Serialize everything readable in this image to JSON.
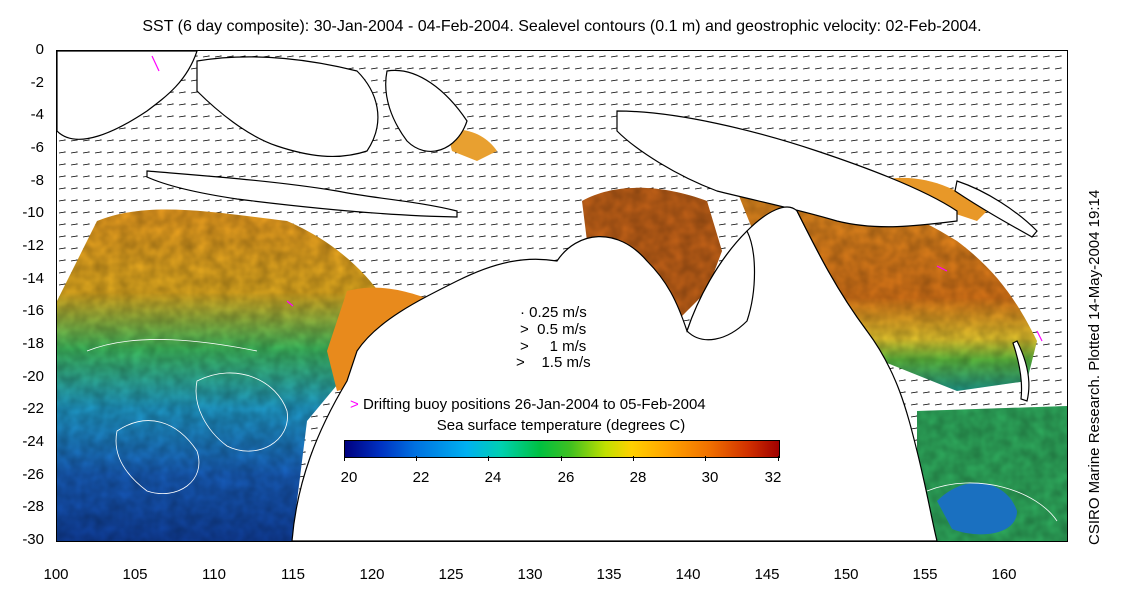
{
  "title": "SST (6 day composite): 30-Jan-2004 - 04-Feb-2004. Sealevel contours (0.1 m) and geostrophic velocity: 02-Feb-2004.",
  "credit": "CSIRO Marine Research. Plotted 14-May-2004 19:14",
  "map": {
    "lon_range": [
      100,
      164
    ],
    "lat_range": [
      -30,
      0
    ],
    "lon_ticks": [
      "100",
      "105",
      "110",
      "115",
      "120",
      "125",
      "130",
      "135",
      "140",
      "145",
      "150",
      "155",
      "160"
    ],
    "lat_ticks": [
      "0",
      "-2",
      "-4",
      "-6",
      "-8",
      "-10",
      "-12",
      "-14",
      "-16",
      "-18",
      "-20",
      "-22",
      "-24",
      "-26",
      "-28",
      "-30"
    ]
  },
  "velocity_legend": [
    {
      "label": "0.25 m/s"
    },
    {
      "label": "0.5 m/s"
    },
    {
      "label": "1 m/s"
    },
    {
      "label": "1.5 m/s"
    }
  ],
  "buoy_legend": "Drifting buoy positions 26-Jan-2004 to 05-Feb-2004",
  "colorbar": {
    "title": "Sea surface temperature (degrees C)",
    "ticks": [
      "20",
      "22",
      "24",
      "26",
      "28",
      "30",
      "32"
    ]
  },
  "colors": {
    "land": "#ffffff",
    "coast": "#000000",
    "vector": "#000000",
    "contour": "#ffffff",
    "buoy": "#ff00ff",
    "warm": "#e8901a",
    "hot": "#c05a10",
    "cool": "#1a6ad0"
  }
}
